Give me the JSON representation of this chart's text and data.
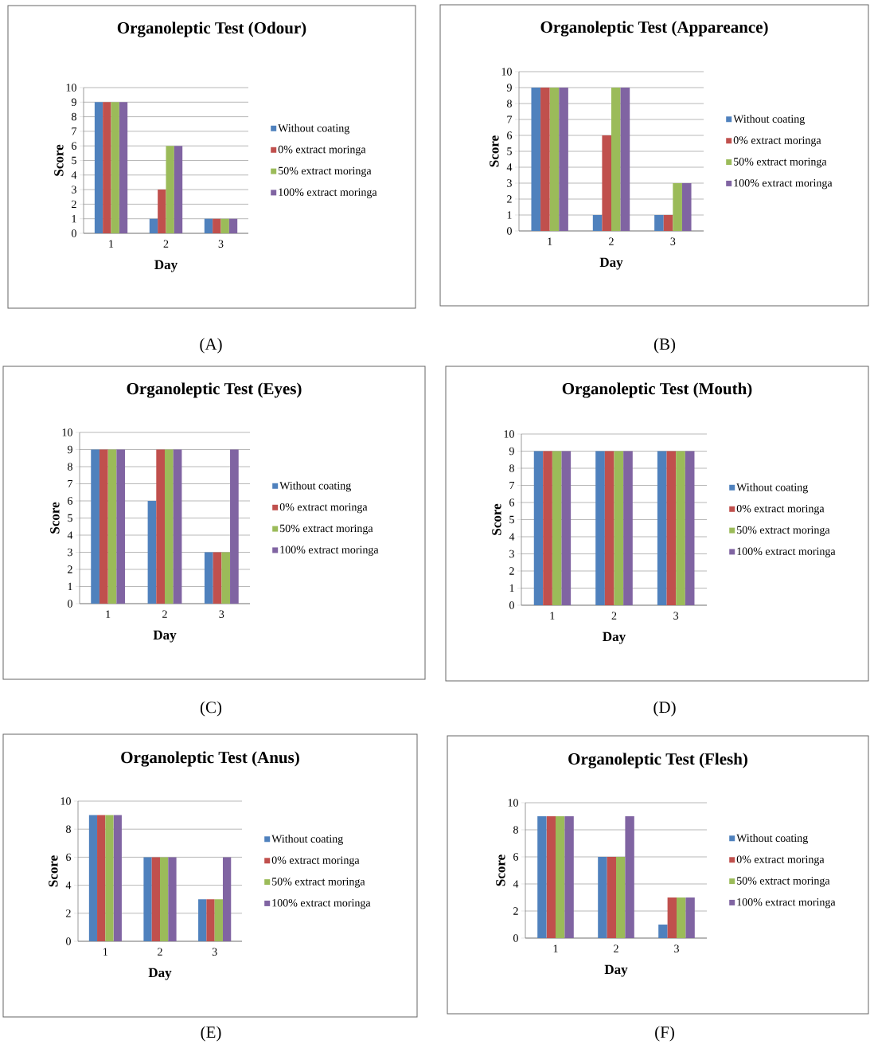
{
  "chart_data": [
    {
      "type": "bar",
      "title": "Organoleptic Test (Odour)",
      "xlabel": "Day",
      "ylabel": "Score",
      "categories": [
        "1",
        "2",
        "3"
      ],
      "series": [
        {
          "name": "Without coating",
          "color": "#4f81bd",
          "values": [
            9,
            1,
            1
          ]
        },
        {
          "name": "0% extract moringa",
          "color": "#c0504d",
          "values": [
            9,
            3,
            1
          ]
        },
        {
          "name": "50% extract moringa",
          "color": "#9bbb59",
          "values": [
            9,
            6,
            1
          ]
        },
        {
          "name": "100% extract moringa",
          "color": "#8064a2",
          "values": [
            9,
            6,
            1
          ]
        }
      ],
      "ylim": [
        0,
        10
      ],
      "yticks": [
        0,
        1,
        2,
        3,
        4,
        5,
        6,
        7,
        8,
        9,
        10
      ],
      "grid": "y",
      "legend": "right",
      "annotations": [
        "(A)"
      ]
    },
    {
      "type": "bar",
      "title": "Organoleptic Test (Appareance)",
      "xlabel": "Day",
      "ylabel": "Score",
      "categories": [
        "1",
        "2",
        "3"
      ],
      "series": [
        {
          "name": "Without coating",
          "color": "#4f81bd",
          "values": [
            9,
            1,
            1
          ]
        },
        {
          "name": "0% extract moringa",
          "color": "#c0504d",
          "values": [
            9,
            6,
            1
          ]
        },
        {
          "name": "50% extract moringa",
          "color": "#9bbb59",
          "values": [
            9,
            9,
            3
          ]
        },
        {
          "name": "100% extract moringa",
          "color": "#8064a2",
          "values": [
            9,
            9,
            3
          ]
        }
      ],
      "ylim": [
        0,
        10
      ],
      "yticks": [
        0,
        1,
        2,
        3,
        4,
        5,
        6,
        7,
        8,
        9,
        10
      ],
      "grid": "y",
      "legend": "right",
      "annotations": [
        "(B)"
      ]
    },
    {
      "type": "bar",
      "title": "Organoleptic Test (Eyes)",
      "xlabel": "Day",
      "ylabel": "Score",
      "categories": [
        "1",
        "2",
        "3"
      ],
      "series": [
        {
          "name": "Without coating",
          "color": "#4f81bd",
          "values": [
            9,
            6,
            3
          ]
        },
        {
          "name": "0% extract moringa",
          "color": "#c0504d",
          "values": [
            9,
            9,
            3
          ]
        },
        {
          "name": "50% extract moringa",
          "color": "#9bbb59",
          "values": [
            9,
            9,
            3
          ]
        },
        {
          "name": "100% extract moringa",
          "color": "#8064a2",
          "values": [
            9,
            9,
            9
          ]
        }
      ],
      "ylim": [
        0,
        10
      ],
      "yticks": [
        0,
        1,
        2,
        3,
        4,
        5,
        6,
        7,
        8,
        9,
        10
      ],
      "grid": "y",
      "legend": "right",
      "annotations": [
        "(C)"
      ]
    },
    {
      "type": "bar",
      "title": "Organoleptic Test (Mouth)",
      "xlabel": "Day",
      "ylabel": "Score",
      "categories": [
        "1",
        "2",
        "3"
      ],
      "series": [
        {
          "name": "Without coating",
          "color": "#4f81bd",
          "values": [
            9,
            9,
            9
          ]
        },
        {
          "name": "0% extract moringa",
          "color": "#c0504d",
          "values": [
            9,
            9,
            9
          ]
        },
        {
          "name": "50% extract moringa",
          "color": "#9bbb59",
          "values": [
            9,
            9,
            9
          ]
        },
        {
          "name": "100% extract moringa",
          "color": "#8064a2",
          "values": [
            9,
            9,
            9
          ]
        }
      ],
      "ylim": [
        0,
        10
      ],
      "yticks": [
        0,
        1,
        2,
        3,
        4,
        5,
        6,
        7,
        8,
        9,
        10
      ],
      "grid": "y",
      "legend": "right",
      "annotations": [
        "(D)"
      ]
    },
    {
      "type": "bar",
      "title": "Organoleptic Test (Anus)",
      "xlabel": "Day",
      "ylabel": "Score",
      "categories": [
        "1",
        "2",
        "3"
      ],
      "series": [
        {
          "name": "Without coating",
          "color": "#4f81bd",
          "values": [
            9,
            6,
            3
          ]
        },
        {
          "name": "0% extract moringa",
          "color": "#c0504d",
          "values": [
            9,
            6,
            3
          ]
        },
        {
          "name": "50% extract moringa",
          "color": "#9bbb59",
          "values": [
            9,
            6,
            3
          ]
        },
        {
          "name": "100% extract moringa",
          "color": "#8064a2",
          "values": [
            9,
            6,
            6
          ]
        }
      ],
      "ylim": [
        0,
        10
      ],
      "yticks": [
        0,
        2,
        4,
        6,
        8,
        10
      ],
      "grid": "y",
      "legend": "right",
      "annotations": [
        "(E)"
      ]
    },
    {
      "type": "bar",
      "title": "Organoleptic Test (Flesh)",
      "xlabel": "Day",
      "ylabel": "Score",
      "categories": [
        "1",
        "2",
        "3"
      ],
      "series": [
        {
          "name": "Without coating",
          "color": "#4f81bd",
          "values": [
            9,
            6,
            1
          ]
        },
        {
          "name": "0% extract moringa",
          "color": "#c0504d",
          "values": [
            9,
            6,
            3
          ]
        },
        {
          "name": "50% extract moringa",
          "color": "#9bbb59",
          "values": [
            9,
            6,
            3
          ]
        },
        {
          "name": "100% extract moringa",
          "color": "#8064a2",
          "values": [
            9,
            9,
            3
          ]
        }
      ],
      "ylim": [
        0,
        10
      ],
      "yticks": [
        0,
        2,
        4,
        6,
        8,
        10
      ],
      "grid": "y",
      "legend": "right",
      "annotations": [
        "(F)"
      ]
    }
  ]
}
